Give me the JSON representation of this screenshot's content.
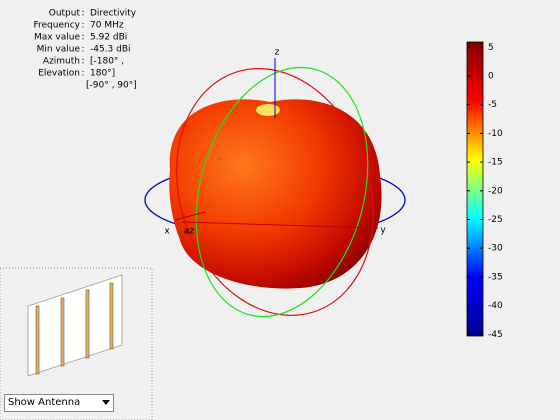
{
  "chart_data": {
    "type": "pattern3d",
    "info": [
      [
        "Output",
        "Directivity"
      ],
      [
        "Frequency",
        "70 MHz"
      ],
      [
        "Max value",
        "5.92 dBi"
      ],
      [
        "Min value",
        "-45.3 dBi"
      ],
      [
        "Azimuth",
        "[-180° ,"
      ],
      [
        "Elevation",
        "180°]"
      ]
    ],
    "separator": ":",
    "info_extra": "[-90° , 90°]",
    "axis_labels": {
      "x": "x",
      "y": "y",
      "z": "z",
      "az": "az"
    },
    "clim": [
      -45.3,
      5.92
    ],
    "ticks": [
      5,
      0,
      -5,
      -10,
      -15,
      -20,
      -25,
      -30,
      -35,
      -40,
      -45
    ],
    "colormap": [
      "#800000",
      "#ff0000",
      "#ffff00",
      "#00ffff",
      "#0000ff",
      "#00008f"
    ]
  },
  "controls": {
    "dropdown": "Show Antenna"
  }
}
